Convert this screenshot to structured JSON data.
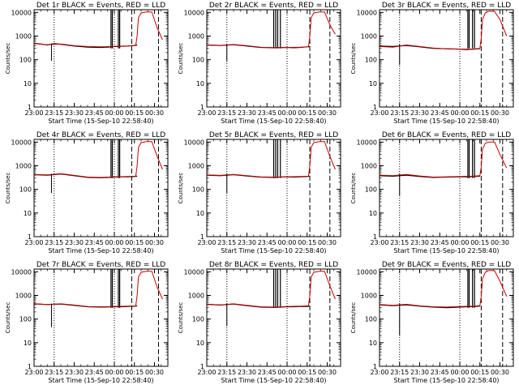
{
  "figure": {
    "background": "#ffffff",
    "events_color": "#000000",
    "lld_color": "#cc0000"
  },
  "common_axes": {
    "x_ticks": [
      "23:00",
      "23:15",
      "23:30",
      "23:45",
      "00:00",
      "00:15",
      "00:30"
    ],
    "x_tick_minutes": [
      0,
      15,
      30,
      45,
      60,
      75,
      90
    ],
    "xlim_minutes": [
      0,
      100
    ],
    "xlabel": "Start Time (15-Sep-10 22:58:40)",
    "ylabel": "Counts/sec",
    "y_ticks": [
      "1",
      "10",
      "100",
      "1000",
      "10000"
    ],
    "y_tick_values": [
      1,
      10,
      100,
      1000,
      10000
    ],
    "ylim": [
      1,
      13000
    ],
    "y_scale": "log"
  },
  "chart_data": [
    {
      "type": "line",
      "title": "Det 1r BLACK = Events, RED = LLD",
      "series": [
        {
          "name": "Events",
          "color": "#000000",
          "x": [
            0,
            5,
            10,
            15,
            20,
            30,
            40,
            50,
            55,
            60,
            65,
            70,
            75,
            77
          ],
          "y": [
            500,
            460,
            420,
            480,
            450,
            380,
            340,
            330,
            340,
            360,
            370,
            380,
            400,
            420
          ]
        },
        {
          "name": "LLD",
          "color": "#cc0000",
          "x": [
            0,
            10,
            20,
            30,
            40,
            50,
            60,
            70,
            76,
            77,
            78,
            80,
            84,
            88,
            92,
            96
          ],
          "y": [
            480,
            430,
            460,
            390,
            360,
            350,
            370,
            380,
            400,
            1000,
            6000,
            9500,
            10500,
            10500,
            2200,
            700
          ]
        }
      ],
      "dip": {
        "x": 13,
        "y": 90
      },
      "black_spikes_x": [
        57.5,
        58.5,
        63,
        64
      ],
      "dotted_vlines_x": [
        15,
        60
      ],
      "dashed_vlines_x": [
        73,
        93
      ]
    },
    {
      "type": "line",
      "title": "Det 2r BLACK = Events, RED = LLD",
      "series": [
        {
          "name": "Events",
          "color": "#000000",
          "x": [
            0,
            10,
            20,
            30,
            40,
            50,
            60,
            65,
            70,
            75,
            77
          ],
          "y": [
            420,
            400,
            430,
            380,
            330,
            320,
            330,
            320,
            330,
            350,
            360
          ]
        },
        {
          "name": "LLD",
          "color": "#cc0000",
          "x": [
            0,
            10,
            20,
            30,
            40,
            50,
            60,
            70,
            76,
            77,
            78,
            80,
            84,
            88,
            92,
            96
          ],
          "y": [
            420,
            400,
            440,
            390,
            340,
            320,
            330,
            340,
            350,
            1000,
            6000,
            9500,
            10500,
            10500,
            3000,
            1200
          ]
        }
      ],
      "dip": {
        "x": 15,
        "y": 85
      },
      "black_spikes_x": [
        50,
        51.5,
        53,
        55
      ],
      "dotted_vlines_x": [
        15,
        60
      ],
      "dashed_vlines_x": [
        77,
        92
      ]
    },
    {
      "type": "line",
      "title": "Det 3r BLACK = Events, RED = LLD",
      "series": [
        {
          "name": "Events",
          "color": "#000000",
          "x": [
            0,
            10,
            20,
            30,
            40,
            50,
            60,
            65,
            70,
            75
          ],
          "y": [
            380,
            360,
            400,
            350,
            300,
            290,
            280,
            270,
            280,
            290
          ]
        },
        {
          "name": "LLD",
          "color": "#cc0000",
          "x": [
            0,
            10,
            20,
            30,
            40,
            50,
            60,
            70,
            75,
            76,
            77,
            79,
            82,
            86,
            90,
            95
          ],
          "y": [
            360,
            340,
            420,
            360,
            310,
            290,
            280,
            280,
            300,
            800,
            5000,
            9500,
            11500,
            11000,
            5000,
            1000
          ]
        }
      ],
      "dip": {
        "x": 15,
        "y": 60
      },
      "black_spikes_x": [
        66,
        67,
        69.5,
        71
      ],
      "dotted_vlines_x": [
        15,
        60
      ],
      "dashed_vlines_x": [
        76,
        92
      ]
    },
    {
      "type": "line",
      "title": "Det 4r BLACK = Events, RED = LLD",
      "series": [
        {
          "name": "Events",
          "color": "#000000",
          "x": [
            0,
            10,
            20,
            30,
            40,
            50,
            60,
            65,
            70,
            75,
            77
          ],
          "y": [
            420,
            400,
            450,
            380,
            320,
            310,
            330,
            340,
            340,
            350,
            360
          ]
        },
        {
          "name": "LLD",
          "color": "#cc0000",
          "x": [
            0,
            10,
            20,
            30,
            40,
            50,
            60,
            70,
            76,
            77,
            78,
            80,
            84,
            88,
            92,
            96
          ],
          "y": [
            430,
            410,
            460,
            390,
            330,
            320,
            340,
            350,
            360,
            1000,
            6000,
            9500,
            10500,
            10500,
            2500,
            700
          ]
        }
      ],
      "dip": {
        "x": 13,
        "y": 70
      },
      "black_spikes_x": [
        57.5,
        58.5,
        63,
        64
      ],
      "dotted_vlines_x": [
        15,
        60
      ],
      "dashed_vlines_x": [
        73,
        93
      ]
    },
    {
      "type": "line",
      "title": "Det 5r BLACK = Events, RED = LLD",
      "series": [
        {
          "name": "Events",
          "color": "#000000",
          "x": [
            0,
            10,
            20,
            30,
            40,
            50,
            60,
            65,
            70,
            75,
            77
          ],
          "y": [
            400,
            380,
            420,
            370,
            330,
            320,
            340,
            330,
            340,
            350,
            360
          ]
        },
        {
          "name": "LLD",
          "color": "#cc0000",
          "x": [
            0,
            10,
            20,
            30,
            40,
            50,
            60,
            70,
            76,
            77,
            78,
            80,
            84,
            88,
            92,
            96
          ],
          "y": [
            410,
            390,
            430,
            380,
            340,
            330,
            340,
            350,
            360,
            1000,
            6000,
            9500,
            10500,
            10500,
            2500,
            700
          ]
        }
      ],
      "dip": {
        "x": 15,
        "y": 70
      },
      "black_spikes_x": [
        50,
        51.5,
        53,
        55
      ],
      "dotted_vlines_x": [
        15,
        60
      ],
      "dashed_vlines_x": [
        77,
        92
      ]
    },
    {
      "type": "line",
      "title": "Det 6r BLACK = Events, RED = LLD",
      "series": [
        {
          "name": "Events",
          "color": "#000000",
          "x": [
            0,
            10,
            20,
            30,
            40,
            50,
            60,
            65,
            70,
            75
          ],
          "y": [
            380,
            360,
            400,
            350,
            320,
            330,
            340,
            340,
            350,
            360
          ]
        },
        {
          "name": "LLD",
          "color": "#cc0000",
          "x": [
            0,
            10,
            20,
            30,
            40,
            50,
            60,
            70,
            75,
            76,
            77,
            79,
            82,
            86,
            90,
            95
          ],
          "y": [
            400,
            380,
            430,
            370,
            330,
            340,
            350,
            360,
            380,
            900,
            5000,
            9000,
            10000,
            10000,
            3000,
            800
          ]
        }
      ],
      "dip": {
        "x": 15,
        "y": 55
      },
      "black_spikes_x": [
        66,
        67,
        69.5,
        71
      ],
      "dotted_vlines_x": [
        15,
        60
      ],
      "dashed_vlines_x": [
        76,
        92
      ]
    },
    {
      "type": "line",
      "title": "Det 7r BLACK = Events, RED = LLD",
      "series": [
        {
          "name": "Events",
          "color": "#000000",
          "x": [
            0,
            10,
            20,
            30,
            40,
            50,
            60,
            65,
            70,
            75,
            77
          ],
          "y": [
            440,
            410,
            430,
            380,
            330,
            320,
            330,
            330,
            340,
            350,
            360
          ]
        },
        {
          "name": "LLD",
          "color": "#cc0000",
          "x": [
            0,
            10,
            20,
            30,
            40,
            50,
            60,
            70,
            76,
            77,
            78,
            80,
            84,
            88,
            92,
            96
          ],
          "y": [
            440,
            410,
            440,
            390,
            340,
            330,
            340,
            350,
            360,
            1000,
            6000,
            9500,
            10500,
            10500,
            2200,
            700
          ]
        }
      ],
      "dip": {
        "x": 13,
        "y": 45
      },
      "black_spikes_x": [
        57.5,
        58.5,
        63,
        64
      ],
      "dotted_vlines_x": [
        15,
        60
      ],
      "dashed_vlines_x": [
        73,
        93
      ]
    },
    {
      "type": "line",
      "title": "Det 8r BLACK = Events, RED = LLD",
      "series": [
        {
          "name": "Events",
          "color": "#000000",
          "x": [
            0,
            10,
            20,
            30,
            40,
            50,
            60,
            65,
            70,
            75,
            77
          ],
          "y": [
            420,
            390,
            430,
            370,
            320,
            310,
            330,
            330,
            340,
            340,
            350
          ]
        },
        {
          "name": "LLD",
          "color": "#cc0000",
          "x": [
            0,
            10,
            20,
            30,
            40,
            50,
            60,
            70,
            76,
            77,
            78,
            80,
            84,
            88,
            92,
            96
          ],
          "y": [
            420,
            390,
            440,
            380,
            330,
            320,
            340,
            350,
            360,
            1000,
            6000,
            9500,
            10500,
            10500,
            2500,
            700
          ]
        }
      ],
      "dip": {
        "x": 15,
        "y": 50
      },
      "black_spikes_x": [
        50,
        51.5,
        53,
        55
      ],
      "dotted_vlines_x": [
        15,
        60
      ],
      "dashed_vlines_x": [
        77,
        92
      ]
    },
    {
      "type": "line",
      "title": "Det 9r BLACK = Events, RED = LLD",
      "series": [
        {
          "name": "Events",
          "color": "#000000",
          "x": [
            0,
            10,
            20,
            30,
            40,
            50,
            60,
            65,
            70,
            75
          ],
          "y": [
            400,
            370,
            400,
            350,
            320,
            300,
            320,
            330,
            340,
            350
          ]
        },
        {
          "name": "LLD",
          "color": "#cc0000",
          "x": [
            0,
            10,
            20,
            30,
            40,
            50,
            60,
            70,
            75,
            76,
            77,
            79,
            82,
            86,
            90,
            95
          ],
          "y": [
            410,
            380,
            420,
            360,
            330,
            320,
            340,
            350,
            370,
            900,
            5000,
            9500,
            11500,
            11000,
            4000,
            900
          ]
        }
      ],
      "dip": {
        "x": 15,
        "y": 20
      },
      "black_spikes_x": [
        66,
        67,
        69.5,
        71
      ],
      "dotted_vlines_x": [
        15,
        60
      ],
      "dashed_vlines_x": [
        76,
        92
      ]
    }
  ]
}
